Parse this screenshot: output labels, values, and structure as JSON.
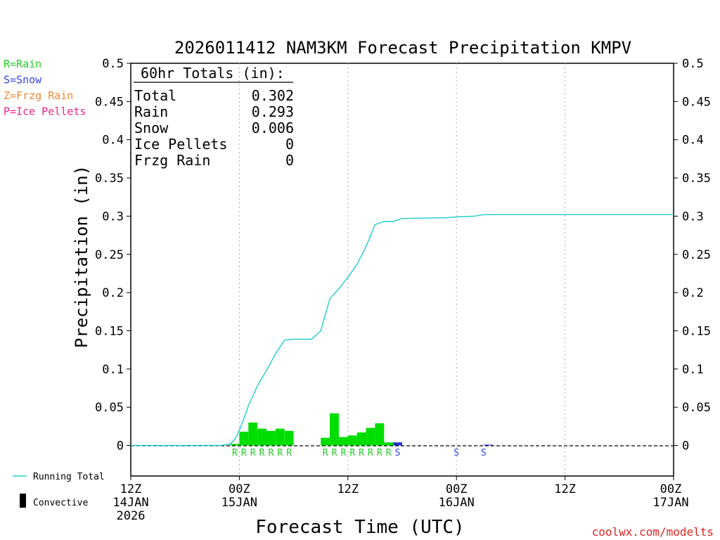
{
  "chart_data": {
    "type": "bar",
    "title": "2026011412 NAM3KM Forecast Precipitation KMPV",
    "xlabel": "Forecast Time (UTC)",
    "ylabel": "Precipitation (in)",
    "ylim": [
      -0.04,
      0.5
    ],
    "xlim_hours": [
      0,
      60
    ],
    "y_ticks": [
      "0.5",
      "0.45",
      "0.4",
      "0.35",
      "0.3",
      "0.25",
      "0.2",
      "0.15",
      "0.1",
      "0.05",
      "0"
    ],
    "y_tick_values": [
      0.5,
      0.45,
      0.4,
      0.35,
      0.3,
      0.25,
      0.2,
      0.15,
      0.1,
      0.05,
      0
    ],
    "x_ticks": [
      {
        "hour": 0,
        "l1": "12Z",
        "l2": "14JAN",
        "l3": "2026"
      },
      {
        "hour": 12,
        "l1": "00Z",
        "l2": "15JAN",
        "l3": ""
      },
      {
        "hour": 24,
        "l1": "12Z",
        "l2": "",
        "l3": ""
      },
      {
        "hour": 36,
        "l1": "00Z",
        "l2": "16JAN",
        "l3": ""
      },
      {
        "hour": 48,
        "l1": "12Z",
        "l2": "",
        "l3": ""
      },
      {
        "hour": 60,
        "l1": "00Z",
        "l2": "17JAN",
        "l3": ""
      }
    ],
    "gridline_hours": [
      12,
      24,
      36,
      48
    ],
    "legend_types": [
      {
        "label": "R=Rain",
        "color": "#22cc22"
      },
      {
        "label": "S=Snow",
        "color": "#3344dd"
      },
      {
        "label": "Z=Frzg Rain",
        "color": "#ee8833"
      },
      {
        "label": "P=Ice Pellets",
        "color": "#ee2288"
      }
    ],
    "legend_lines": [
      {
        "label": "Running Total",
        "color": "#22cccc"
      },
      {
        "label": "Convective",
        "color": "#000000"
      }
    ],
    "totals_box": {
      "title": "60hr Totals (in):",
      "rows": [
        {
          "label": "Total",
          "value": "0.302"
        },
        {
          "label": "Rain",
          "value": "0.293"
        },
        {
          "label": "Snow",
          "value": "0.006"
        },
        {
          "label": "Ice Pellets",
          "value": "0"
        },
        {
          "label": "Frzg Rain",
          "value": "0"
        }
      ]
    },
    "series": [
      {
        "name": "Rain",
        "color": "#00dd00",
        "bars": [
          {
            "hour": 11,
            "value": 0.002
          },
          {
            "hour": 12,
            "value": 0.018
          },
          {
            "hour": 13,
            "value": 0.03
          },
          {
            "hour": 14,
            "value": 0.022
          },
          {
            "hour": 15,
            "value": 0.019
          },
          {
            "hour": 16,
            "value": 0.022
          },
          {
            "hour": 17,
            "value": 0.019
          },
          {
            "hour": 21,
            "value": 0.01
          },
          {
            "hour": 22,
            "value": 0.042
          },
          {
            "hour": 23,
            "value": 0.011
          },
          {
            "hour": 24,
            "value": 0.013
          },
          {
            "hour": 25,
            "value": 0.017
          },
          {
            "hour": 26,
            "value": 0.023
          },
          {
            "hour": 27,
            "value": 0.029
          },
          {
            "hour": 28,
            "value": 0.004
          }
        ]
      },
      {
        "name": "Snow",
        "color": "#2233cc",
        "bars": [
          {
            "hour": 29,
            "value": 0.004
          },
          {
            "hour": 39,
            "value": 0.001
          }
        ]
      }
    ],
    "type_markers": [
      {
        "hour": 11.5,
        "text": "R",
        "kind": "rain"
      },
      {
        "hour": 12.5,
        "text": "R",
        "kind": "rain"
      },
      {
        "hour": 13.5,
        "text": "R",
        "kind": "rain"
      },
      {
        "hour": 14.5,
        "text": "R",
        "kind": "rain"
      },
      {
        "hour": 15.5,
        "text": "R",
        "kind": "rain"
      },
      {
        "hour": 16.5,
        "text": "R",
        "kind": "rain"
      },
      {
        "hour": 17.5,
        "text": "R",
        "kind": "rain"
      },
      {
        "hour": 21.5,
        "text": "R",
        "kind": "rain"
      },
      {
        "hour": 22.5,
        "text": "R",
        "kind": "rain"
      },
      {
        "hour": 23.5,
        "text": "R",
        "kind": "rain"
      },
      {
        "hour": 24.5,
        "text": "R",
        "kind": "rain"
      },
      {
        "hour": 25.5,
        "text": "R",
        "kind": "rain"
      },
      {
        "hour": 26.5,
        "text": "R",
        "kind": "rain"
      },
      {
        "hour": 27.5,
        "text": "R",
        "kind": "rain"
      },
      {
        "hour": 28.5,
        "text": "R",
        "kind": "rain"
      },
      {
        "hour": 29.5,
        "text": "S",
        "kind": "snow"
      },
      {
        "hour": 36.0,
        "text": "S",
        "kind": "snow"
      },
      {
        "hour": 39.0,
        "text": "S",
        "kind": "snow"
      }
    ],
    "running_total": {
      "hours": [
        0,
        10,
        11,
        11.5,
        12,
        12.5,
        13,
        14,
        15,
        16,
        17,
        18,
        19,
        20,
        21,
        22,
        23,
        24,
        25,
        26,
        27,
        28,
        29,
        30,
        35,
        36,
        38,
        39,
        45,
        60
      ],
      "values": [
        0,
        0,
        0.002,
        0.008,
        0.02,
        0.035,
        0.052,
        0.078,
        0.098,
        0.12,
        0.138,
        0.139,
        0.139,
        0.139,
        0.15,
        0.192,
        0.205,
        0.22,
        0.237,
        0.26,
        0.289,
        0.293,
        0.293,
        0.297,
        0.298,
        0.299,
        0.3,
        0.302,
        0.302,
        0.302
      ]
    },
    "credit": "coolwx.com/modelts"
  }
}
